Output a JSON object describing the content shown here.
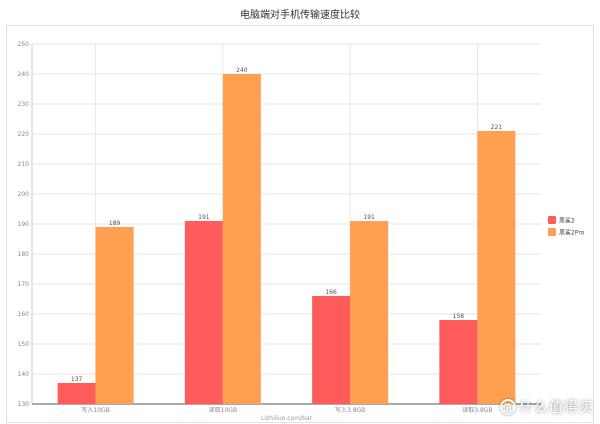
{
  "chart_data": {
    "type": "bar",
    "title": "电脑端对手机传输速度比较",
    "categories": [
      "写入10GB",
      "读取10GB",
      "写入3.8GB",
      "读取3.8GB"
    ],
    "series": [
      {
        "name": "黑鲨2",
        "color": "#ff5b5b",
        "values": [
          137,
          191,
          166,
          158
        ]
      },
      {
        "name": "黑鲨2Pro",
        "color": "#ff9f4f",
        "values": [
          189,
          240,
          191,
          221
        ]
      }
    ],
    "ylim": [
      130,
      250
    ],
    "yticks": [
      130,
      140,
      150,
      160,
      170,
      180,
      190,
      200,
      210,
      220,
      230,
      240,
      250
    ],
    "grid": true,
    "legend": "right",
    "watermark": "Lizhiliuo.com/bar"
  },
  "badge": {
    "logo": "值",
    "text": "什么值得买"
  }
}
